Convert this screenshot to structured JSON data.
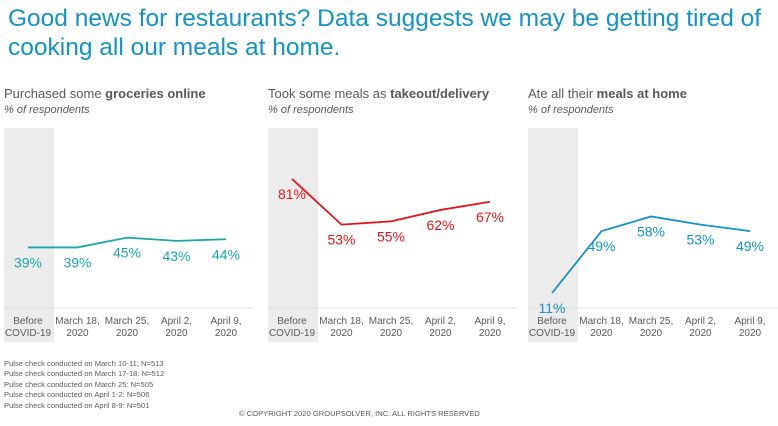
{
  "title": "Good news for restaurants? Data suggests we may be getting tired of cooking all our meals at home.",
  "chart_data": [
    {
      "type": "line",
      "title_prefix": "Purchased some ",
      "title_bold": "groceries online",
      "subtitle": "% of respondents",
      "categories": [
        [
          "Before",
          "COVID-19"
        ],
        [
          "March 18,",
          "2020"
        ],
        [
          "March 25,",
          "2020"
        ],
        [
          "April 2,",
          "2020"
        ],
        [
          "April 9,",
          "2020"
        ]
      ],
      "values": [
        39,
        39,
        45,
        43,
        44
      ],
      "labels": [
        "39%",
        "39%",
        "45%",
        "43%",
        "44%"
      ],
      "color": "#1aa7a7",
      "ylim": [
        0,
        100
      ],
      "shaded_category": 0
    },
    {
      "type": "line",
      "title_prefix": "Took some meals as ",
      "title_bold": "takeout/delivery",
      "subtitle": "% of respondents",
      "categories": [
        [
          "Before",
          "COVID-19"
        ],
        [
          "March 18,",
          "2020"
        ],
        [
          "March 25,",
          "2020"
        ],
        [
          "April 2,",
          "2020"
        ],
        [
          "April 9,",
          "2020"
        ]
      ],
      "values": [
        81,
        53,
        55,
        62,
        67
      ],
      "labels": [
        "81%",
        "53%",
        "55%",
        "62%",
        "67%"
      ],
      "color": "#e8141d",
      "ylim": [
        0,
        100
      ],
      "shaded_category": 0
    },
    {
      "type": "line",
      "title_prefix": "Ate all their ",
      "title_bold": "meals at home",
      "subtitle": "% of respondents",
      "categories": [
        [
          "Before",
          "COVID-19"
        ],
        [
          "March 18,",
          "2020"
        ],
        [
          "March 25,",
          "2020"
        ],
        [
          "April 2,",
          "2020"
        ],
        [
          "April 9,",
          "2020"
        ]
      ],
      "values": [
        11,
        49,
        58,
        53,
        49
      ],
      "labels": [
        "11%",
        "49%",
        "58%",
        "53%",
        "49%"
      ],
      "color": "#1493c6",
      "ylim": [
        0,
        100
      ],
      "shaded_category": 0
    }
  ],
  "notes": [
    "Pulse check conducted on March 10-11; N=513",
    "Pulse check conducted on March 17-18: N=512",
    "Pulse check conducted on March 25: N=505",
    "Pulse check conducted on April 1-2: N=506",
    "Pulse check conducted on April 8-9: N=501"
  ],
  "copyright": "© COPYRIGHT 2020 GROUPSOLVER, INC. ALL RIGHTS RESERVED"
}
